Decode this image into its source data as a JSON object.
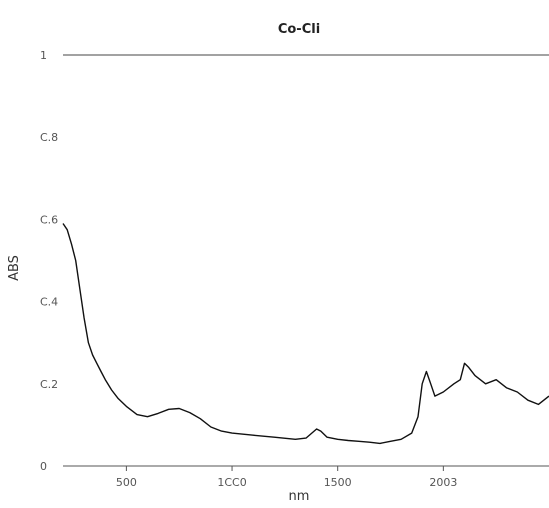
{
  "chart_data": {
    "type": "line",
    "title": "Co-Cli",
    "xlabel": "nm",
    "ylabel": "ABS",
    "xlim": [
      200,
      2500
    ],
    "ylim": [
      0,
      1
    ],
    "x_ticks": [
      {
        "value": 500,
        "label": "500"
      },
      {
        "value": 1000,
        "label": "1CC0"
      },
      {
        "value": 1500,
        "label": "1500"
      },
      {
        "value": 2000,
        "label": "2003"
      }
    ],
    "y_ticks": [
      {
        "value": 0,
        "label": "0"
      },
      {
        "value": 0.2,
        "label": "C.2"
      },
      {
        "value": 0.4,
        "label": "C.4"
      },
      {
        "value": 0.6,
        "label": "C.6"
      },
      {
        "value": 0.8,
        "label": "C.8"
      },
      {
        "value": 1.0,
        "label": "1"
      }
    ],
    "grid": false,
    "reference_line": {
      "y": 1.0
    },
    "series": [
      {
        "color": "#111111",
        "x": [
          200,
          220,
          240,
          260,
          280,
          300,
          320,
          340,
          360,
          380,
          400,
          430,
          460,
          500,
          550,
          600,
          650,
          700,
          750,
          800,
          850,
          900,
          950,
          1000,
          1100,
          1200,
          1300,
          1350,
          1400,
          1420,
          1450,
          1500,
          1550,
          1600,
          1650,
          1700,
          1750,
          1800,
          1850,
          1880,
          1900,
          1920,
          1940,
          1960,
          2000,
          2050,
          2080,
          2100,
          2120,
          2150,
          2200,
          2250,
          2300,
          2350,
          2400,
          2450,
          2500
        ],
        "y": [
          0.59,
          0.575,
          0.54,
          0.5,
          0.43,
          0.36,
          0.3,
          0.27,
          0.25,
          0.23,
          0.21,
          0.185,
          0.165,
          0.145,
          0.125,
          0.12,
          0.128,
          0.138,
          0.14,
          0.13,
          0.115,
          0.095,
          0.085,
          0.08,
          0.075,
          0.07,
          0.065,
          0.068,
          0.09,
          0.085,
          0.07,
          0.065,
          0.062,
          0.06,
          0.058,
          0.055,
          0.06,
          0.065,
          0.08,
          0.12,
          0.2,
          0.23,
          0.2,
          0.17,
          0.18,
          0.2,
          0.21,
          0.25,
          0.24,
          0.22,
          0.2,
          0.21,
          0.19,
          0.18,
          0.16,
          0.15,
          0.17
        ]
      }
    ]
  }
}
